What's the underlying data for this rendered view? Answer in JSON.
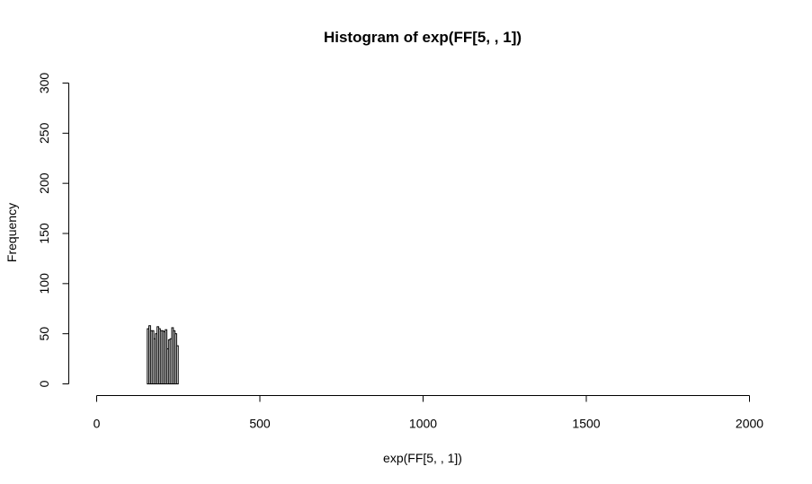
{
  "chart_data": {
    "type": "bar",
    "title": "Histogram of exp(FF[5, , 1])",
    "xlabel": "exp(FF[5, , 1])",
    "ylabel": "Frequency",
    "xlim": [
      0,
      2000
    ],
    "ylim": [
      0,
      300
    ],
    "xticks": [
      0,
      500,
      1000,
      1500,
      2000
    ],
    "yticks": [
      0,
      50,
      100,
      150,
      200,
      250,
      300
    ],
    "bin_width": 5,
    "bins": [
      {
        "start": 155,
        "end": 160,
        "count": 55
      },
      {
        "start": 160,
        "end": 165,
        "count": 58
      },
      {
        "start": 165,
        "end": 170,
        "count": 53
      },
      {
        "start": 170,
        "end": 175,
        "count": 53
      },
      {
        "start": 175,
        "end": 180,
        "count": 45
      },
      {
        "start": 180,
        "end": 185,
        "count": 50
      },
      {
        "start": 185,
        "end": 190,
        "count": 57
      },
      {
        "start": 190,
        "end": 195,
        "count": 55
      },
      {
        "start": 195,
        "end": 200,
        "count": 53
      },
      {
        "start": 200,
        "end": 205,
        "count": 53
      },
      {
        "start": 205,
        "end": 210,
        "count": 52
      },
      {
        "start": 210,
        "end": 215,
        "count": 54
      },
      {
        "start": 215,
        "end": 220,
        "count": 35
      },
      {
        "start": 220,
        "end": 225,
        "count": 44
      },
      {
        "start": 225,
        "end": 230,
        "count": 45
      },
      {
        "start": 230,
        "end": 235,
        "count": 56
      },
      {
        "start": 235,
        "end": 240,
        "count": 53
      },
      {
        "start": 240,
        "end": 245,
        "count": 50
      },
      {
        "start": 245,
        "end": 250,
        "count": 38
      }
    ]
  }
}
